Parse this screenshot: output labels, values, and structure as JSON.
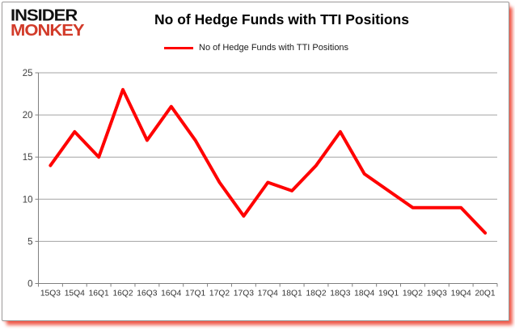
{
  "logo": {
    "line1": "INSIDER",
    "line2": "MONKEY",
    "line1_color": "#111111",
    "line2_color": "#d23b2a"
  },
  "header": {
    "title": "No of Hedge Funds with TTI Positions"
  },
  "legend": {
    "label": "No of Hedge Funds with TTI Positions",
    "color": "#ff0000"
  },
  "chart_data": {
    "type": "line",
    "title": "No of Hedge Funds with TTI Positions",
    "categories": [
      "15Q3",
      "15Q4",
      "16Q1",
      "16Q2",
      "16Q3",
      "16Q4",
      "17Q1",
      "17Q2",
      "17Q3",
      "17Q4",
      "18Q1",
      "18Q2",
      "18Q3",
      "18Q4",
      "19Q1",
      "19Q2",
      "19Q3",
      "19Q4",
      "20Q1"
    ],
    "series": [
      {
        "name": "No of Hedge Funds with TTI Positions",
        "color": "#ff0000",
        "values": [
          14,
          18,
          15,
          23,
          17,
          21,
          17,
          12,
          8,
          12,
          11,
          14,
          18,
          13,
          11,
          9,
          9,
          9,
          6
        ]
      }
    ],
    "xlabel": "",
    "ylabel": "",
    "ylim": [
      0,
      25
    ],
    "yticks": [
      0,
      5,
      10,
      15,
      20,
      25
    ],
    "grid": true,
    "legend_position": "top-center",
    "line_width": 4,
    "gridline_color": "#a3a3a3",
    "axis_color": "#808080",
    "tick_label_color": "#404040",
    "x_label_color": "#333333",
    "frame_shadow_color": "#eb2d19"
  }
}
